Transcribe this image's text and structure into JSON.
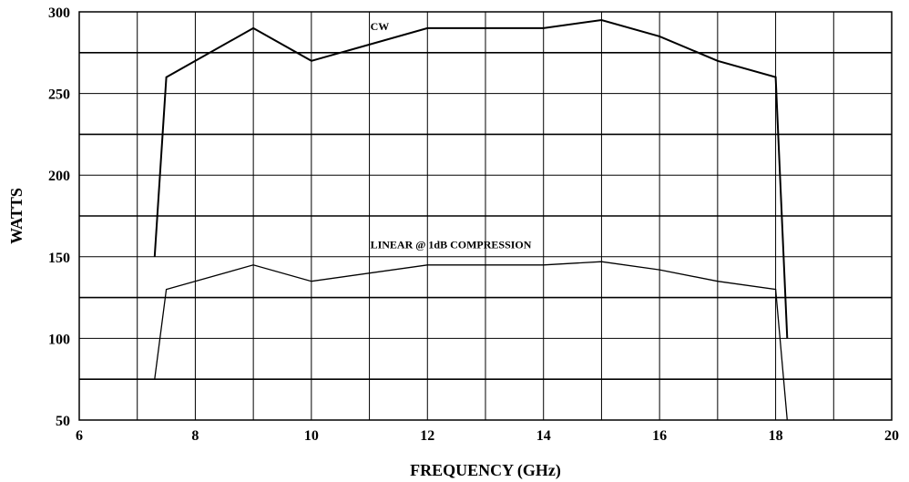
{
  "chart_data": {
    "type": "line",
    "xlabel": "FREQUENCY (GHz)",
    "ylabel": "WATTS",
    "xlim": [
      6,
      20
    ],
    "ylim": [
      50,
      300
    ],
    "x_ticks": [
      6,
      8,
      10,
      12,
      14,
      16,
      18,
      20
    ],
    "y_ticks": [
      50,
      100,
      150,
      200,
      250,
      300
    ],
    "x_grid_step": 1,
    "y_grid_lines": [
      50,
      75,
      100,
      125,
      150,
      175,
      200,
      225,
      250,
      275,
      300
    ],
    "grid": true,
    "legend": "none",
    "series": [
      {
        "name": "CW",
        "label_at": [
          11.0,
          290
        ],
        "stroke_width": 2,
        "points": [
          [
            7.3,
            150
          ],
          [
            7.5,
            260
          ],
          [
            9.0,
            290
          ],
          [
            10.0,
            270
          ],
          [
            12.0,
            290
          ],
          [
            14.0,
            290
          ],
          [
            15.0,
            295
          ],
          [
            16.0,
            285
          ],
          [
            17.0,
            270
          ],
          [
            18.0,
            260
          ],
          [
            18.2,
            100
          ]
        ]
      },
      {
        "name": "LINEAR @ 1dB COMPRESSION",
        "label_at": [
          11.0,
          153
        ],
        "stroke_width": 1.3,
        "points": [
          [
            7.3,
            75
          ],
          [
            7.5,
            130
          ],
          [
            9.0,
            145
          ],
          [
            10.0,
            135
          ],
          [
            12.0,
            145
          ],
          [
            14.0,
            145
          ],
          [
            15.0,
            147
          ],
          [
            16.0,
            142
          ],
          [
            17.0,
            135
          ],
          [
            18.0,
            130
          ],
          [
            18.2,
            50
          ]
        ]
      }
    ]
  }
}
